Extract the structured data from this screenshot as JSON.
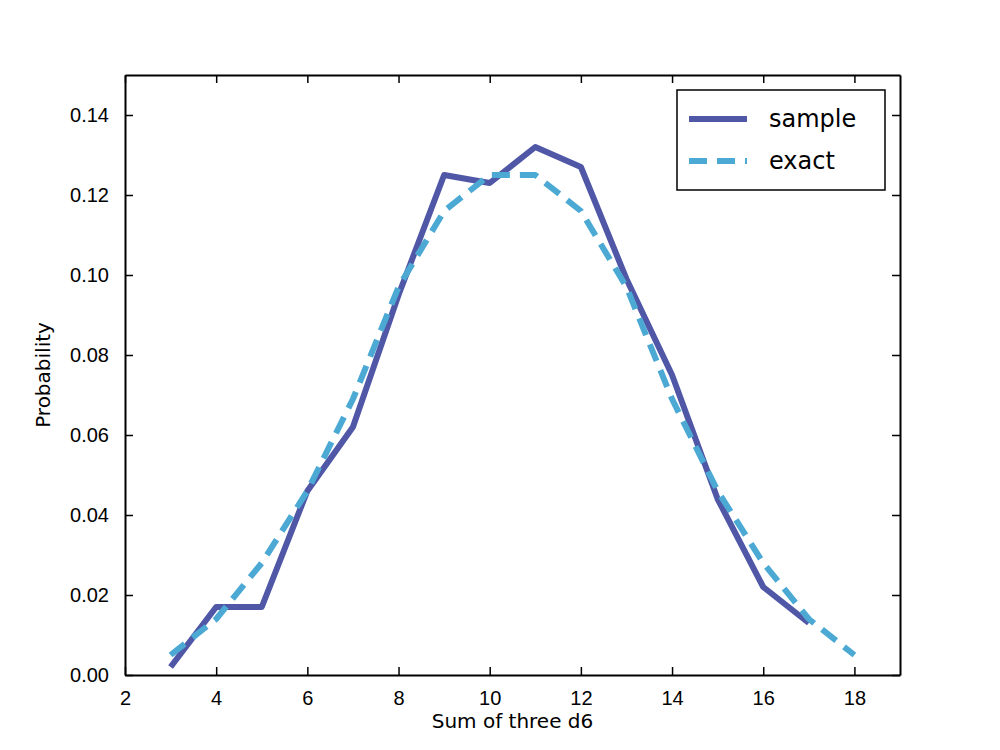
{
  "chart_data": {
    "type": "line",
    "x_label": "Sum of three d6",
    "y_label": "Probability",
    "x": [
      3,
      4,
      5,
      6,
      7,
      8,
      9,
      10,
      11,
      12,
      13,
      14,
      15,
      16,
      17,
      18
    ],
    "series": [
      {
        "name": "sample",
        "color": "#4f57a6",
        "line_style": "solid",
        "values": [
          0.002,
          0.017,
          0.017,
          0.046,
          0.062,
          0.095,
          0.125,
          0.123,
          0.132,
          0.127,
          0.099,
          0.075,
          0.044,
          0.022,
          0.013,
          null
        ]
      },
      {
        "name": "exact",
        "color": "#4ba9d4",
        "line_style": "dashed",
        "values": [
          0.005,
          0.014,
          0.028,
          0.046,
          0.069,
          0.097,
          0.116,
          0.125,
          0.125,
          0.116,
          0.097,
          0.069,
          0.046,
          0.028,
          0.014,
          0.005
        ]
      }
    ],
    "xlim": [
      2,
      19
    ],
    "xticks": [
      2,
      4,
      6,
      8,
      10,
      12,
      14,
      16,
      18
    ],
    "ylim": [
      0,
      0.15
    ],
    "yticks": [
      {
        "value": 0,
        "label": "0.00"
      },
      {
        "value": 0.02,
        "label": "0.02"
      },
      {
        "value": 0.04,
        "label": "0.04"
      },
      {
        "value": 0.06,
        "label": "0.06"
      },
      {
        "value": 0.08,
        "label": "0.08"
      },
      {
        "value": 0.1,
        "label": "0.10"
      },
      {
        "value": 0.12,
        "label": "0.12"
      },
      {
        "value": 0.14,
        "label": "0.14"
      }
    ],
    "grid": false,
    "legend": "upper right"
  }
}
